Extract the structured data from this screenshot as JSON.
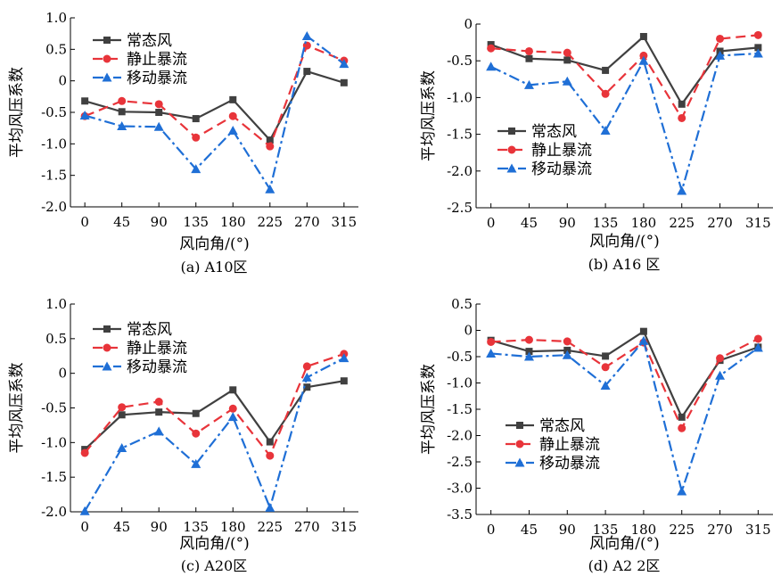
{
  "figure": {
    "colors": {
      "常态风": "#404040",
      "静止暴流": "#e8343a",
      "移动暴流": "#1f6fd6"
    }
  },
  "chart_data": [
    {
      "type": "line",
      "caption": "(a)  A10区",
      "xlabel": "风向角/(°)",
      "ylabel": "平均风压系数",
      "categories": [
        "0",
        "45",
        "90",
        "135",
        "180",
        "225",
        "270",
        "315"
      ],
      "ylim": [
        -2.0,
        1.0
      ],
      "yticks": [
        "1.0",
        "0.5",
        "0",
        "-0.5",
        "-1.0",
        "-1.5",
        "-2.0"
      ],
      "ytick_values": [
        1.0,
        0.5,
        0,
        -0.5,
        -1.0,
        -1.5,
        -2.0
      ],
      "legend_position": "top-left",
      "series": [
        {
          "name": "常态风",
          "values": [
            -0.32,
            -0.49,
            -0.5,
            -0.6,
            -0.3,
            -0.94,
            0.15,
            -0.03
          ]
        },
        {
          "name": "静止暴流",
          "values": [
            -0.56,
            -0.32,
            -0.37,
            -0.9,
            -0.56,
            -1.04,
            0.56,
            0.32
          ]
        },
        {
          "name": "移动暴流",
          "values": [
            -0.55,
            -0.72,
            -0.73,
            -1.4,
            -0.79,
            -1.72,
            0.71,
            0.27
          ]
        }
      ]
    },
    {
      "type": "line",
      "caption": "(b)   A16 区",
      "xlabel": "风向角/(°)",
      "ylabel": "平均风压系数",
      "categories": [
        "0",
        "45",
        "90",
        "135",
        "180",
        "225",
        "270",
        "315"
      ],
      "ylim": [
        -2.5,
        0
      ],
      "yticks": [
        "0",
        "-0.5",
        "-1.0",
        "-1.5",
        "-2.0",
        "-2.5"
      ],
      "ytick_values": [
        0,
        -0.5,
        -1.0,
        -1.5,
        -2.0,
        -2.5
      ],
      "legend_position": "bottom-left",
      "series": [
        {
          "name": "常态风",
          "values": [
            -0.28,
            -0.47,
            -0.49,
            -0.63,
            -0.17,
            -1.09,
            -0.37,
            -0.32
          ]
        },
        {
          "name": "静止暴流",
          "values": [
            -0.33,
            -0.37,
            -0.39,
            -0.95,
            -0.43,
            -1.28,
            -0.2,
            -0.15
          ]
        },
        {
          "name": "移动暴流",
          "values": [
            -0.58,
            -0.83,
            -0.78,
            -1.45,
            -0.5,
            -2.27,
            -0.43,
            -0.4
          ]
        }
      ]
    },
    {
      "type": "line",
      "caption": "(c) A20区",
      "xlabel": "风向角/(°)",
      "ylabel": "平均风压系数",
      "categories": [
        "0",
        "45",
        "90",
        "135",
        "180",
        "225",
        "270",
        "315"
      ],
      "ylim": [
        -2.0,
        1.0
      ],
      "yticks": [
        "1.0",
        "0.5",
        "0",
        "-0.5",
        "-1.0",
        "-1.5",
        "-2.0"
      ],
      "ytick_values": [
        1.0,
        0.5,
        0,
        -0.5,
        -1.0,
        -1.5,
        -2.0
      ],
      "legend_position": "top-left",
      "series": [
        {
          "name": "常态风",
          "values": [
            -1.1,
            -0.6,
            -0.56,
            -0.58,
            -0.24,
            -0.99,
            -0.2,
            -0.11
          ]
        },
        {
          "name": "静止暴流",
          "values": [
            -1.15,
            -0.49,
            -0.41,
            -0.87,
            -0.51,
            -1.19,
            0.1,
            0.28
          ]
        },
        {
          "name": "移动暴流",
          "values": [
            -1.99,
            -1.08,
            -0.84,
            -1.31,
            -0.63,
            -1.94,
            -0.06,
            0.22
          ]
        }
      ]
    },
    {
      "type": "line",
      "caption": "(d)   A2 2区",
      "xlabel": "风向角/(°)",
      "ylabel": "平均风压系数",
      "categories": [
        "0",
        "45",
        "90",
        "135",
        "180",
        "225",
        "270",
        "315"
      ],
      "ylim": [
        -3.5,
        0.5
      ],
      "yticks": [
        "0.5",
        "0",
        "-0.5",
        "-1.0",
        "-1.5",
        "-2.0",
        "-2.5",
        "-3.0",
        "-3.5"
      ],
      "ytick_values": [
        0.5,
        0,
        -0.5,
        -1.0,
        -1.5,
        -2.0,
        -2.5,
        -3.0,
        -3.5
      ],
      "legend_position": "bottom-left",
      "series": [
        {
          "name": "常态风",
          "values": [
            -0.19,
            -0.4,
            -0.38,
            -0.49,
            -0.02,
            -1.65,
            -0.57,
            -0.32
          ]
        },
        {
          "name": "静止暴流",
          "values": [
            -0.22,
            -0.18,
            -0.21,
            -0.7,
            -0.23,
            -1.86,
            -0.53,
            -0.16
          ]
        },
        {
          "name": "移动暴流",
          "values": [
            -0.44,
            -0.5,
            -0.47,
            -1.05,
            -0.2,
            -3.06,
            -0.86,
            -0.33
          ]
        }
      ]
    }
  ]
}
